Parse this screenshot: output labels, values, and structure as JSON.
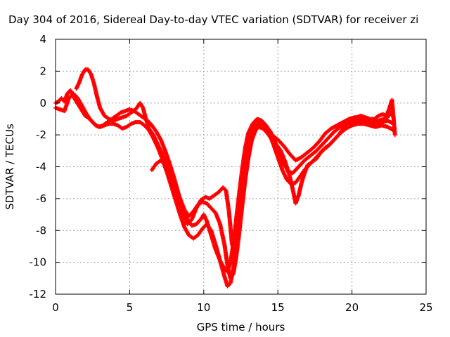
{
  "chart_data": {
    "type": "scatter",
    "title": "Day 304 of 2016, Sidereal Day-to-day VTEC variation (SDTVAR) for receiver zi",
    "xlabel": "GPS time / hours",
    "ylabel": "SDTVAR / TECUs",
    "xlim": [
      0,
      25
    ],
    "ylim": [
      -12,
      4
    ],
    "x_ticks": [
      0,
      5,
      10,
      15,
      20,
      25
    ],
    "y_ticks": [
      -12,
      -10,
      -8,
      -6,
      -4,
      -2,
      0,
      2,
      4
    ],
    "x_tick_labels": [
      "0",
      "5",
      "10",
      "15",
      "20",
      "25"
    ],
    "y_tick_labels": [
      "-12",
      "-10",
      "-8",
      "-6",
      "-4",
      "-2",
      "0",
      "2",
      "4"
    ],
    "grid": true,
    "marker": "+",
    "marker_color": "#ff0000",
    "series": [
      {
        "points": [
          [
            0.0,
            0.0
          ],
          [
            0.2,
            0.1
          ],
          [
            0.4,
            0.3
          ],
          [
            0.6,
            0.1
          ],
          [
            0.8,
            0.6
          ],
          [
            1.0,
            0.8
          ],
          [
            1.2,
            0.4
          ],
          [
            1.4,
            0.1
          ],
          [
            1.6,
            -0.2
          ],
          [
            1.8,
            -0.5
          ],
          [
            2.0,
            -0.8
          ],
          [
            2.3,
            -1.0
          ],
          [
            2.6,
            -1.3
          ],
          [
            2.9,
            -1.5
          ],
          [
            3.2,
            -1.4
          ],
          [
            3.5,
            -1.2
          ],
          [
            3.8,
            -1.0
          ],
          [
            4.1,
            -0.8
          ],
          [
            4.4,
            -0.6
          ],
          [
            4.7,
            -0.5
          ],
          [
            5.0,
            -0.4
          ],
          [
            5.3,
            -0.5
          ],
          [
            5.6,
            -0.7
          ],
          [
            5.9,
            -0.9
          ],
          [
            6.2,
            -1.1
          ],
          [
            6.5,
            -1.4
          ],
          [
            6.8,
            -1.8
          ],
          [
            7.1,
            -2.3
          ],
          [
            7.4,
            -3.0
          ],
          [
            7.7,
            -3.8
          ],
          [
            8.0,
            -4.7
          ],
          [
            8.3,
            -5.7
          ],
          [
            8.6,
            -6.6
          ],
          [
            8.9,
            -7.3
          ],
          [
            9.2,
            -7.7
          ],
          [
            9.5,
            -7.6
          ],
          [
            9.8,
            -7.3
          ],
          [
            10.0,
            -7.0
          ],
          [
            10.2,
            -7.4
          ],
          [
            10.5,
            -8.3
          ],
          [
            10.8,
            -9.2
          ],
          [
            11.1,
            -9.9
          ],
          [
            11.4,
            -10.4
          ],
          [
            11.6,
            -10.6
          ],
          [
            11.8,
            -10.0
          ],
          [
            12.0,
            -8.8
          ],
          [
            12.2,
            -7.2
          ],
          [
            12.4,
            -5.6
          ],
          [
            12.6,
            -4.1
          ],
          [
            12.8,
            -2.8
          ],
          [
            13.0,
            -1.9
          ],
          [
            13.3,
            -1.3
          ],
          [
            13.6,
            -1.0
          ],
          [
            13.9,
            -1.1
          ],
          [
            14.2,
            -1.4
          ],
          [
            14.5,
            -1.8
          ],
          [
            14.8,
            -2.4
          ],
          [
            15.1,
            -3.1
          ],
          [
            15.4,
            -3.8
          ],
          [
            15.7,
            -4.3
          ],
          [
            16.0,
            -4.4
          ],
          [
            16.4,
            -4.0
          ],
          [
            16.8,
            -3.6
          ],
          [
            17.2,
            -3.3
          ],
          [
            17.6,
            -3.0
          ],
          [
            18.0,
            -2.6
          ],
          [
            18.4,
            -2.2
          ],
          [
            18.8,
            -1.8
          ],
          [
            19.2,
            -1.5
          ],
          [
            19.6,
            -1.3
          ],
          [
            20.0,
            -1.2
          ],
          [
            20.4,
            -1.1
          ],
          [
            20.8,
            -1.1
          ],
          [
            21.2,
            -1.2
          ],
          [
            21.6,
            -1.3
          ],
          [
            22.0,
            -1.2
          ],
          [
            22.4,
            -1.1
          ],
          [
            22.8,
            -1.3
          ]
        ]
      },
      {
        "points": [
          [
            0.0,
            -0.3
          ],
          [
            0.3,
            -0.4
          ],
          [
            0.6,
            -0.5
          ],
          [
            0.9,
            0.3
          ],
          [
            1.2,
            0.6
          ],
          [
            1.5,
            0.3
          ],
          [
            1.8,
            -0.2
          ],
          [
            2.1,
            -0.7
          ],
          [
            2.4,
            -1.1
          ],
          [
            2.7,
            -1.4
          ],
          [
            3.0,
            -1.5
          ],
          [
            3.3,
            -1.4
          ],
          [
            3.6,
            -1.3
          ],
          [
            3.9,
            -1.3
          ],
          [
            4.2,
            -1.4
          ],
          [
            4.5,
            -1.6
          ],
          [
            4.8,
            -1.5
          ],
          [
            5.1,
            -1.3
          ],
          [
            5.4,
            -1.2
          ],
          [
            5.7,
            -1.2
          ],
          [
            6.0,
            -1.4
          ],
          [
            6.3,
            -1.7
          ],
          [
            6.6,
            -2.2
          ],
          [
            6.9,
            -2.8
          ],
          [
            7.2,
            -3.5
          ],
          [
            7.5,
            -4.3
          ],
          [
            7.8,
            -5.2
          ],
          [
            8.1,
            -6.1
          ],
          [
            8.4,
            -7.0
          ],
          [
            8.7,
            -7.8
          ],
          [
            9.0,
            -8.3
          ],
          [
            9.3,
            -8.5
          ],
          [
            9.6,
            -8.3
          ],
          [
            9.9,
            -7.9
          ],
          [
            10.2,
            -7.6
          ],
          [
            10.5,
            -8.0
          ],
          [
            10.8,
            -8.9
          ],
          [
            11.1,
            -9.9
          ],
          [
            11.4,
            -10.9
          ],
          [
            11.6,
            -11.5
          ],
          [
            11.8,
            -11.3
          ],
          [
            12.0,
            -10.4
          ],
          [
            12.2,
            -9.0
          ],
          [
            12.4,
            -7.5
          ],
          [
            12.6,
            -6.0
          ],
          [
            12.8,
            -4.6
          ],
          [
            13.0,
            -3.4
          ],
          [
            13.2,
            -2.4
          ],
          [
            13.5,
            -1.7
          ],
          [
            13.8,
            -1.3
          ],
          [
            14.1,
            -1.4
          ],
          [
            14.4,
            -1.9
          ],
          [
            14.7,
            -2.6
          ],
          [
            15.0,
            -3.4
          ],
          [
            15.3,
            -4.2
          ],
          [
            15.6,
            -4.8
          ],
          [
            15.9,
            -5.1
          ],
          [
            16.2,
            -5.0
          ],
          [
            16.5,
            -4.6
          ],
          [
            16.8,
            -4.2
          ],
          [
            17.1,
            -3.9
          ],
          [
            17.4,
            -3.6
          ],
          [
            17.7,
            -3.3
          ],
          [
            18.0,
            -3.0
          ],
          [
            18.4,
            -2.7
          ],
          [
            18.8,
            -2.3
          ],
          [
            19.2,
            -1.9
          ],
          [
            19.6,
            -1.6
          ],
          [
            20.0,
            -1.4
          ],
          [
            20.4,
            -1.3
          ],
          [
            20.8,
            -1.3
          ],
          [
            21.2,
            -1.4
          ],
          [
            21.6,
            -1.5
          ],
          [
            22.0,
            -1.4
          ],
          [
            22.4,
            -1.5
          ],
          [
            22.8,
            -1.7
          ]
        ]
      },
      {
        "points": [
          [
            1.4,
            0.9
          ],
          [
            1.6,
            1.3
          ],
          [
            1.8,
            1.8
          ],
          [
            2.0,
            2.1
          ],
          [
            2.2,
            2.1
          ],
          [
            2.4,
            1.8
          ],
          [
            2.6,
            1.2
          ],
          [
            2.8,
            0.4
          ],
          [
            3.0,
            -0.3
          ],
          [
            3.3,
            -0.8
          ],
          [
            3.6,
            -1.0
          ],
          [
            3.9,
            -1.1
          ],
          [
            4.2,
            -1.0
          ],
          [
            4.5,
            -0.9
          ],
          [
            4.8,
            -0.8
          ],
          [
            5.1,
            -0.6
          ],
          [
            5.4,
            -0.4
          ],
          [
            5.7,
            0.0
          ],
          [
            5.9,
            -0.3
          ],
          [
            6.1,
            -1.0
          ],
          [
            6.3,
            -1.6
          ],
          [
            6.6,
            -2.0
          ],
          [
            6.9,
            -2.6
          ],
          [
            7.2,
            -3.2
          ],
          [
            7.5,
            -3.9
          ],
          [
            7.8,
            -4.6
          ],
          [
            8.1,
            -5.3
          ],
          [
            8.4,
            -6.0
          ],
          [
            8.7,
            -6.7
          ],
          [
            9.0,
            -7.1
          ],
          [
            9.3,
            -6.8
          ],
          [
            9.6,
            -6.4
          ],
          [
            9.9,
            -6.2
          ],
          [
            10.2,
            -6.3
          ],
          [
            10.5,
            -6.6
          ],
          [
            10.8,
            -6.9
          ],
          [
            11.1,
            -7.6
          ],
          [
            11.4,
            -8.9
          ],
          [
            11.6,
            -10.2
          ],
          [
            11.8,
            -11.0
          ],
          [
            12.0,
            -10.7
          ],
          [
            12.2,
            -9.6
          ],
          [
            12.4,
            -8.1
          ],
          [
            12.6,
            -6.4
          ],
          [
            12.8,
            -4.8
          ],
          [
            13.0,
            -3.5
          ],
          [
            13.2,
            -2.5
          ],
          [
            13.4,
            -1.8
          ],
          [
            13.7,
            -1.5
          ],
          [
            14.0,
            -1.6
          ],
          [
            14.3,
            -1.9
          ],
          [
            14.6,
            -2.3
          ],
          [
            14.9,
            -2.6
          ],
          [
            15.2,
            -3.0
          ],
          [
            15.5,
            -3.7
          ],
          [
            15.8,
            -4.6
          ],
          [
            16.0,
            -5.4
          ],
          [
            16.2,
            -6.3
          ],
          [
            16.4,
            -5.8
          ],
          [
            16.6,
            -5.0
          ],
          [
            16.8,
            -4.4
          ],
          [
            17.0,
            -3.9
          ],
          [
            17.3,
            -3.7
          ],
          [
            17.6,
            -3.5
          ],
          [
            17.9,
            -3.1
          ],
          [
            18.2,
            -2.8
          ],
          [
            18.5,
            -2.6
          ],
          [
            18.8,
            -2.3
          ],
          [
            19.1,
            -2.0
          ],
          [
            19.4,
            -1.6
          ],
          [
            19.7,
            -1.3
          ],
          [
            20.0,
            -1.1
          ],
          [
            20.3,
            -0.9
          ],
          [
            20.6,
            -0.8
          ],
          [
            20.9,
            -0.9
          ],
          [
            21.2,
            -1.0
          ],
          [
            21.5,
            -1.0
          ],
          [
            21.8,
            -0.8
          ],
          [
            22.1,
            -0.7
          ],
          [
            22.4,
            -0.9
          ],
          [
            22.6,
            -0.6
          ],
          [
            22.8,
            -0.9
          ]
        ]
      },
      {
        "points": [
          [
            6.5,
            -4.2
          ],
          [
            6.8,
            -3.8
          ],
          [
            7.1,
            -3.6
          ],
          [
            7.4,
            -3.9
          ],
          [
            7.7,
            -4.5
          ],
          [
            8.0,
            -5.2
          ],
          [
            8.3,
            -6.0
          ],
          [
            8.6,
            -6.9
          ],
          [
            8.9,
            -7.6
          ],
          [
            9.2,
            -7.3
          ],
          [
            9.5,
            -6.6
          ],
          [
            9.8,
            -6.1
          ],
          [
            10.1,
            -5.9
          ],
          [
            10.4,
            -6.0
          ],
          [
            10.7,
            -5.8
          ],
          [
            11.0,
            -5.6
          ],
          [
            11.3,
            -5.3
          ],
          [
            11.5,
            -5.5
          ],
          [
            11.7,
            -6.8
          ],
          [
            11.9,
            -8.8
          ],
          [
            12.1,
            -9.6
          ],
          [
            12.3,
            -8.0
          ],
          [
            12.5,
            -6.2
          ],
          [
            12.7,
            -4.5
          ],
          [
            12.9,
            -3.1
          ],
          [
            13.1,
            -2.1
          ],
          [
            13.4,
            -1.5
          ],
          [
            13.7,
            -1.2
          ],
          [
            14.0,
            -1.3
          ],
          [
            14.3,
            -1.6
          ],
          [
            14.6,
            -2.0
          ],
          [
            15.0,
            -2.3
          ],
          [
            15.4,
            -2.7
          ],
          [
            15.8,
            -3.2
          ],
          [
            16.2,
            -3.6
          ],
          [
            16.6,
            -3.4
          ],
          [
            17.0,
            -3.1
          ],
          [
            17.4,
            -2.8
          ],
          [
            17.8,
            -2.4
          ],
          [
            18.2,
            -1.9
          ],
          [
            18.6,
            -1.6
          ],
          [
            19.0,
            -1.4
          ],
          [
            19.4,
            -1.2
          ],
          [
            19.8,
            -1.0
          ],
          [
            20.2,
            -0.9
          ],
          [
            20.6,
            -1.0
          ],
          [
            21.0,
            -1.1
          ],
          [
            21.4,
            -1.2
          ],
          [
            21.8,
            -1.1
          ],
          [
            22.2,
            -1.0
          ],
          [
            22.5,
            -0.4
          ],
          [
            22.7,
            0.2
          ],
          [
            22.9,
            -2.0
          ]
        ]
      }
    ]
  }
}
